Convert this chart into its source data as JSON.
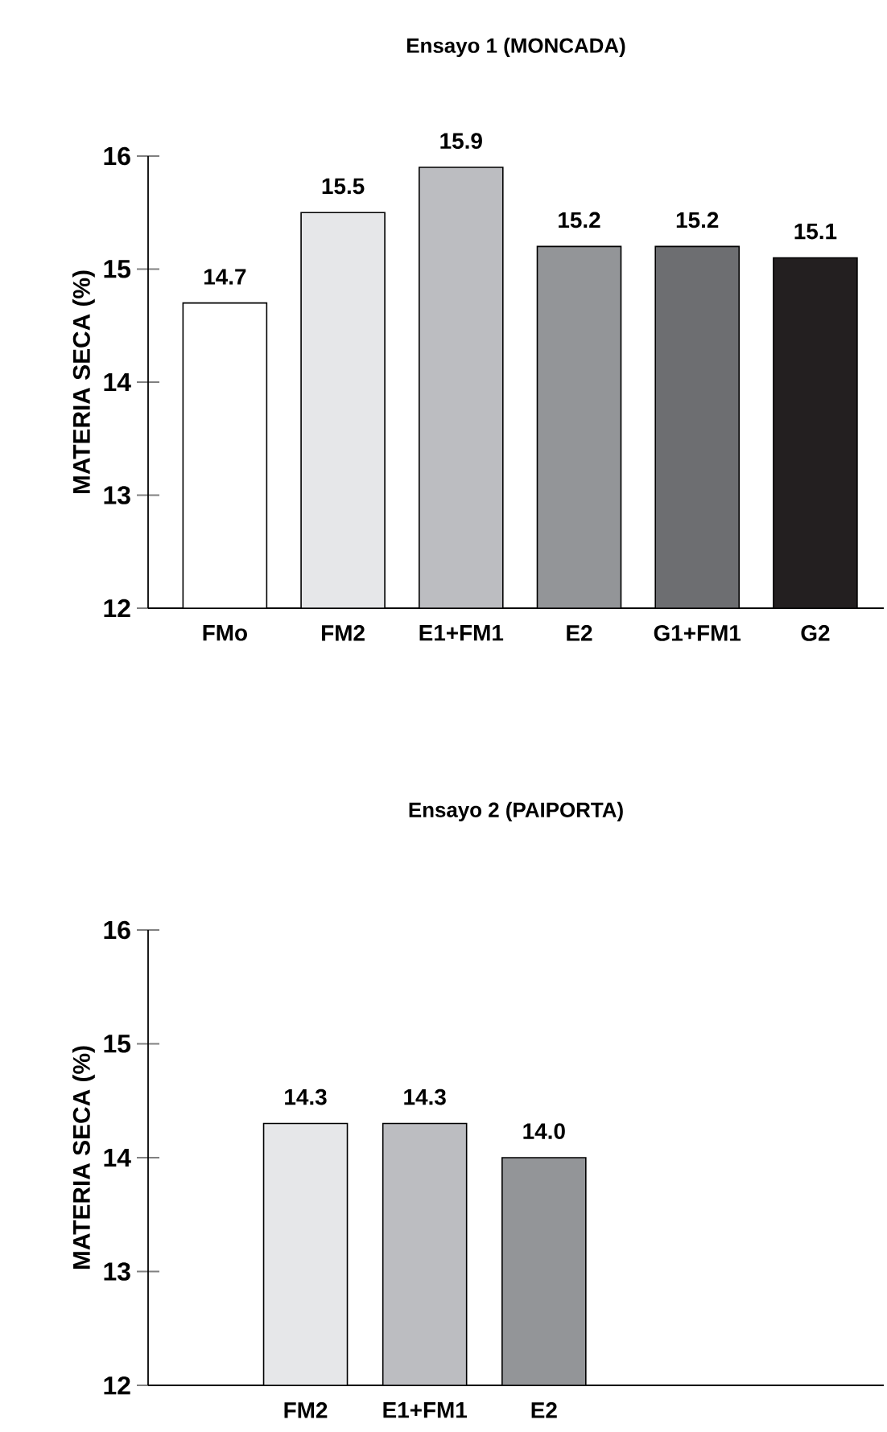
{
  "chart_data": [
    {
      "type": "bar",
      "title": "Ensayo 1 (MONCADA)",
      "ylabel": "MATERIA SECA (%)",
      "categories": [
        "FMo",
        "FM2",
        "E1+FM1",
        "E2",
        "G1+FM1",
        "G2"
      ],
      "values": [
        14.7,
        15.5,
        15.9,
        15.2,
        15.2,
        15.1
      ],
      "colors": [
        "#ffffff",
        "#e6e7e9",
        "#bcbdc1",
        "#939598",
        "#6d6e71",
        "#231f20"
      ],
      "ylim": [
        12,
        16
      ],
      "yticks": [
        12,
        13,
        14,
        15,
        16
      ],
      "data_labels": true
    },
    {
      "type": "bar",
      "title": "Ensayo 2 (PAIPORTA)",
      "ylabel": "MATERIA SECA (%)",
      "categories": [
        null,
        "FM2",
        "E1+FM1",
        "E2",
        null,
        null
      ],
      "values": [
        null,
        14.3,
        14.3,
        14.0,
        null,
        null
      ],
      "colors": [
        null,
        "#e6e7e9",
        "#bcbdc1",
        "#939598",
        null,
        null
      ],
      "value_labels": [
        null,
        "14.3",
        "14.3",
        "14.0",
        null,
        null
      ],
      "ylim": [
        12,
        16
      ],
      "yticks": [
        12,
        13,
        14,
        15,
        16
      ]
    }
  ]
}
